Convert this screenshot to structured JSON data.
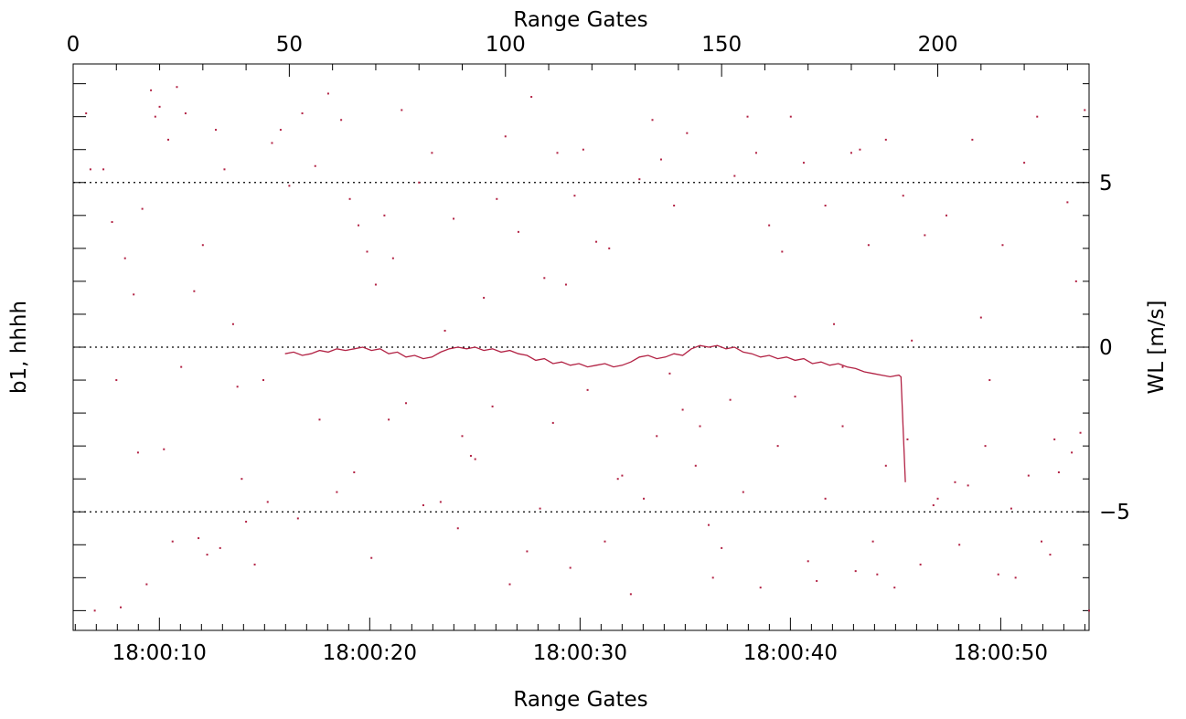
{
  "chart_data": {
    "type": "line",
    "top_axis": {
      "label": "Range Gates",
      "range": [
        0,
        235
      ],
      "ticks": [
        0,
        50,
        100,
        150,
        200
      ],
      "tick_labels": [
        "0",
        "50",
        "100",
        "150",
        "200"
      ]
    },
    "bottom_axis": {
      "label": "Range Gates",
      "range": [
        3.9,
        52.2
      ],
      "ticks": [
        8,
        18,
        28,
        38,
        48
      ],
      "tick_labels": [
        "18:00:10",
        "18:00:20",
        "18:00:30",
        "18:00:40",
        "18:00:50"
      ]
    },
    "left_axis": {
      "label": "b1, hhhh"
    },
    "right_axis": {
      "label": "WL [m/s]",
      "range": [
        -8.6,
        8.6
      ],
      "ticks": [
        5,
        0,
        -5
      ],
      "tick_labels": [
        "5",
        "0",
        "−5"
      ]
    },
    "reference_lines": [
      5,
      0,
      -5
    ],
    "grid": false,
    "colors": {
      "series": "#b22244",
      "axis": "#000000"
    },
    "series": [
      {
        "style": "line",
        "points": [
          [
            49,
            -0.2
          ],
          [
            51,
            -0.15
          ],
          [
            53,
            -0.25
          ],
          [
            55,
            -0.2
          ],
          [
            57,
            -0.1
          ],
          [
            59,
            -0.15
          ],
          [
            61,
            -0.05
          ],
          [
            63,
            -0.1
          ],
          [
            65,
            -0.05
          ],
          [
            67,
            0.0
          ],
          [
            69,
            -0.1
          ],
          [
            71,
            -0.05
          ],
          [
            73,
            -0.2
          ],
          [
            75,
            -0.15
          ],
          [
            77,
            -0.3
          ],
          [
            79,
            -0.25
          ],
          [
            81,
            -0.35
          ],
          [
            83,
            -0.3
          ],
          [
            85,
            -0.15
          ],
          [
            87,
            -0.05
          ],
          [
            89,
            0.0
          ],
          [
            91,
            -0.05
          ],
          [
            93,
            0.0
          ],
          [
            95,
            -0.1
          ],
          [
            97,
            -0.05
          ],
          [
            99,
            -0.15
          ],
          [
            101,
            -0.1
          ],
          [
            103,
            -0.2
          ],
          [
            105,
            -0.25
          ],
          [
            107,
            -0.4
          ],
          [
            109,
            -0.35
          ],
          [
            111,
            -0.5
          ],
          [
            113,
            -0.45
          ],
          [
            115,
            -0.55
          ],
          [
            117,
            -0.5
          ],
          [
            119,
            -0.6
          ],
          [
            121,
            -0.55
          ],
          [
            123,
            -0.5
          ],
          [
            125,
            -0.6
          ],
          [
            127,
            -0.55
          ],
          [
            129,
            -0.45
          ],
          [
            131,
            -0.3
          ],
          [
            133,
            -0.25
          ],
          [
            135,
            -0.35
          ],
          [
            137,
            -0.3
          ],
          [
            139,
            -0.2
          ],
          [
            141,
            -0.25
          ],
          [
            143,
            -0.05
          ],
          [
            145,
            0.05
          ],
          [
            147,
            0.0
          ],
          [
            149,
            0.05
          ],
          [
            151,
            -0.05
          ],
          [
            153,
            0.0
          ],
          [
            155,
            -0.15
          ],
          [
            157,
            -0.2
          ],
          [
            159,
            -0.3
          ],
          [
            161,
            -0.25
          ],
          [
            163,
            -0.35
          ],
          [
            165,
            -0.3
          ],
          [
            167,
            -0.4
          ],
          [
            169,
            -0.35
          ],
          [
            171,
            -0.5
          ],
          [
            173,
            -0.45
          ],
          [
            175,
            -0.55
          ],
          [
            177,
            -0.5
          ],
          [
            179,
            -0.6
          ],
          [
            181,
            -0.65
          ],
          [
            183,
            -0.75
          ],
          [
            185,
            -0.8
          ],
          [
            187,
            -0.85
          ],
          [
            189,
            -0.9
          ],
          [
            191,
            -0.85
          ],
          [
            191.5,
            -0.9
          ],
          [
            192.5,
            -4.1
          ]
        ]
      },
      {
        "style": "scatter",
        "points": [
          [
            3,
            7.1
          ],
          [
            4,
            5.4
          ],
          [
            7,
            5.4
          ],
          [
            9,
            3.8
          ],
          [
            12,
            2.7
          ],
          [
            14,
            1.6
          ],
          [
            16,
            4.2
          ],
          [
            18,
            7.8
          ],
          [
            19,
            7.0
          ],
          [
            20,
            7.3
          ],
          [
            22,
            6.3
          ],
          [
            24,
            7.9
          ],
          [
            26,
            7.1
          ],
          [
            28,
            1.7
          ],
          [
            30,
            3.1
          ],
          [
            33,
            6.6
          ],
          [
            35,
            5.4
          ],
          [
            37,
            0.7
          ],
          [
            38,
            -1.2
          ],
          [
            40,
            -5.3
          ],
          [
            42,
            -6.6
          ],
          [
            44,
            -1.0
          ],
          [
            46,
            6.2
          ],
          [
            48,
            6.6
          ],
          [
            50,
            4.9
          ],
          [
            53,
            7.1
          ],
          [
            56,
            5.5
          ],
          [
            59,
            7.7
          ],
          [
            62,
            6.9
          ],
          [
            64,
            4.5
          ],
          [
            66,
            3.7
          ],
          [
            68,
            2.9
          ],
          [
            70,
            1.9
          ],
          [
            72,
            4.0
          ],
          [
            74,
            2.7
          ],
          [
            76,
            7.2
          ],
          [
            80,
            5.0
          ],
          [
            83,
            5.9
          ],
          [
            86,
            0.5
          ],
          [
            88,
            3.9
          ],
          [
            90,
            -2.7
          ],
          [
            92,
            -3.3
          ],
          [
            95,
            1.5
          ],
          [
            98,
            4.5
          ],
          [
            100,
            6.4
          ],
          [
            103,
            3.5
          ],
          [
            106,
            7.6
          ],
          [
            109,
            2.1
          ],
          [
            112,
            5.9
          ],
          [
            114,
            1.9
          ],
          [
            116,
            4.6
          ],
          [
            118,
            6.0
          ],
          [
            121,
            3.2
          ],
          [
            124,
            3.0
          ],
          [
            126,
            -4.0
          ],
          [
            129,
            -7.5
          ],
          [
            131,
            5.1
          ],
          [
            134,
            6.9
          ],
          [
            136,
            5.7
          ],
          [
            139,
            4.3
          ],
          [
            142,
            6.5
          ],
          [
            144,
            -3.6
          ],
          [
            147,
            -5.4
          ],
          [
            150,
            -6.1
          ],
          [
            153,
            5.2
          ],
          [
            156,
            7.0
          ],
          [
            158,
            5.9
          ],
          [
            161,
            3.7
          ],
          [
            164,
            2.9
          ],
          [
            166,
            7.0
          ],
          [
            169,
            5.6
          ],
          [
            172,
            -7.1
          ],
          [
            174,
            4.3
          ],
          [
            176,
            0.7
          ],
          [
            178,
            -0.6
          ],
          [
            180,
            5.9
          ],
          [
            182,
            6.0
          ],
          [
            184,
            3.1
          ],
          [
            186,
            -6.9
          ],
          [
            188,
            6.3
          ],
          [
            190,
            -7.3
          ],
          [
            192,
            4.6
          ],
          [
            194,
            0.2
          ],
          [
            197,
            3.4
          ],
          [
            199,
            -4.8
          ],
          [
            202,
            4.0
          ],
          [
            205,
            -6.0
          ],
          [
            208,
            6.3
          ],
          [
            210,
            0.9
          ],
          [
            212,
            -1.0
          ],
          [
            215,
            3.1
          ],
          [
            218,
            -7.0
          ],
          [
            220,
            5.6
          ],
          [
            223,
            7.0
          ],
          [
            226,
            -6.3
          ],
          [
            228,
            -3.8
          ],
          [
            230,
            4.4
          ],
          [
            232,
            2.0
          ],
          [
            233,
            -2.6
          ],
          [
            234,
            7.2
          ],
          [
            10,
            -1.0
          ],
          [
            15,
            -3.2
          ],
          [
            21,
            -3.1
          ],
          [
            25,
            -0.6
          ],
          [
            31,
            -6.3
          ],
          [
            34,
            -6.1
          ],
          [
            39,
            -4.0
          ],
          [
            45,
            -4.7
          ],
          [
            52,
            -5.2
          ],
          [
            57,
            -2.2
          ],
          [
            61,
            -4.4
          ],
          [
            65,
            -3.8
          ],
          [
            69,
            -6.4
          ],
          [
            73,
            -2.2
          ],
          [
            77,
            -1.7
          ],
          [
            81,
            -4.8
          ],
          [
            85,
            -4.7
          ],
          [
            89,
            -5.5
          ],
          [
            93,
            -3.4
          ],
          [
            97,
            -1.8
          ],
          [
            101,
            -7.2
          ],
          [
            105,
            -6.2
          ],
          [
            108,
            -4.9
          ],
          [
            111,
            -2.3
          ],
          [
            115,
            -6.7
          ],
          [
            119,
            -1.3
          ],
          [
            123,
            -5.9
          ],
          [
            127,
            -3.9
          ],
          [
            132,
            -4.6
          ],
          [
            135,
            -2.7
          ],
          [
            138,
            -0.8
          ],
          [
            141,
            -1.9
          ],
          [
            145,
            -2.4
          ],
          [
            148,
            -7.0
          ],
          [
            152,
            -1.6
          ],
          [
            155,
            -4.4
          ],
          [
            159,
            -7.3
          ],
          [
            163,
            -3.0
          ],
          [
            167,
            -1.5
          ],
          [
            170,
            -6.5
          ],
          [
            174,
            -4.6
          ],
          [
            178,
            -2.4
          ],
          [
            181,
            -6.8
          ],
          [
            185,
            -5.9
          ],
          [
            188,
            -3.6
          ],
          [
            193,
            -2.8
          ],
          [
            196,
            -6.6
          ],
          [
            200,
            -4.6
          ],
          [
            204,
            -4.1
          ],
          [
            207,
            -4.2
          ],
          [
            211,
            -3.0
          ],
          [
            214,
            -6.9
          ],
          [
            217,
            -4.9
          ],
          [
            221,
            -3.9
          ],
          [
            224,
            -5.9
          ],
          [
            227,
            -2.8
          ],
          [
            231,
            -3.2
          ],
          [
            235,
            -8.0
          ],
          [
            5,
            -8.0
          ],
          [
            11,
            -7.9
          ],
          [
            17,
            -7.2
          ],
          [
            23,
            -5.9
          ],
          [
            29,
            -5.8
          ]
        ]
      }
    ]
  }
}
